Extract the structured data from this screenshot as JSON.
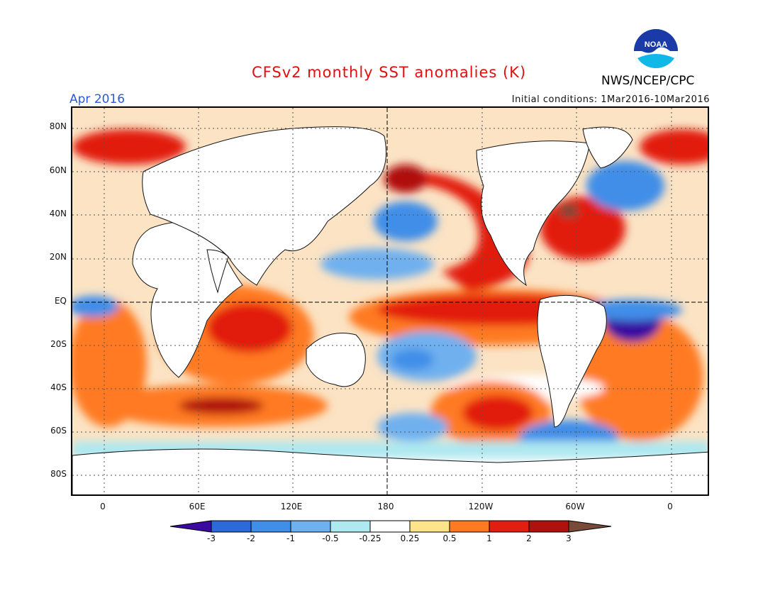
{
  "header": {
    "title": "CFSv2 monthly SST anomalies (K)",
    "month": "Apr 2016",
    "initial_conditions": "Initial conditions: 1Mar2016-10Mar2016",
    "org": "NWS/NCEP/CPC",
    "logo_text": "NOAA"
  },
  "axes": {
    "y_ticks": [
      "80N",
      "60N",
      "40N",
      "20N",
      "EQ",
      "20S",
      "40S",
      "60S",
      "80S"
    ],
    "x_ticks": [
      "0",
      "60E",
      "120E",
      "180",
      "120W",
      "60W",
      "0"
    ]
  },
  "colorbar": {
    "labels": [
      "-3",
      "-2",
      "-1",
      "-0.5",
      "-0.25",
      "0.25",
      "0.5",
      "1",
      "2",
      "3"
    ],
    "colors": [
      "#3b0aa0",
      "#2b6ad8",
      "#3f8ee8",
      "#6fb0ef",
      "#aee8f0",
      "#ffffff",
      "#fde38a",
      "#ff7a20",
      "#e21e10",
      "#b0100e",
      "#7a4a38"
    ]
  },
  "colors": {
    "land": "#ffffff",
    "ocean_background": "#fbe3c4",
    "title": "#e01010",
    "month": "#2a5ad8"
  }
}
